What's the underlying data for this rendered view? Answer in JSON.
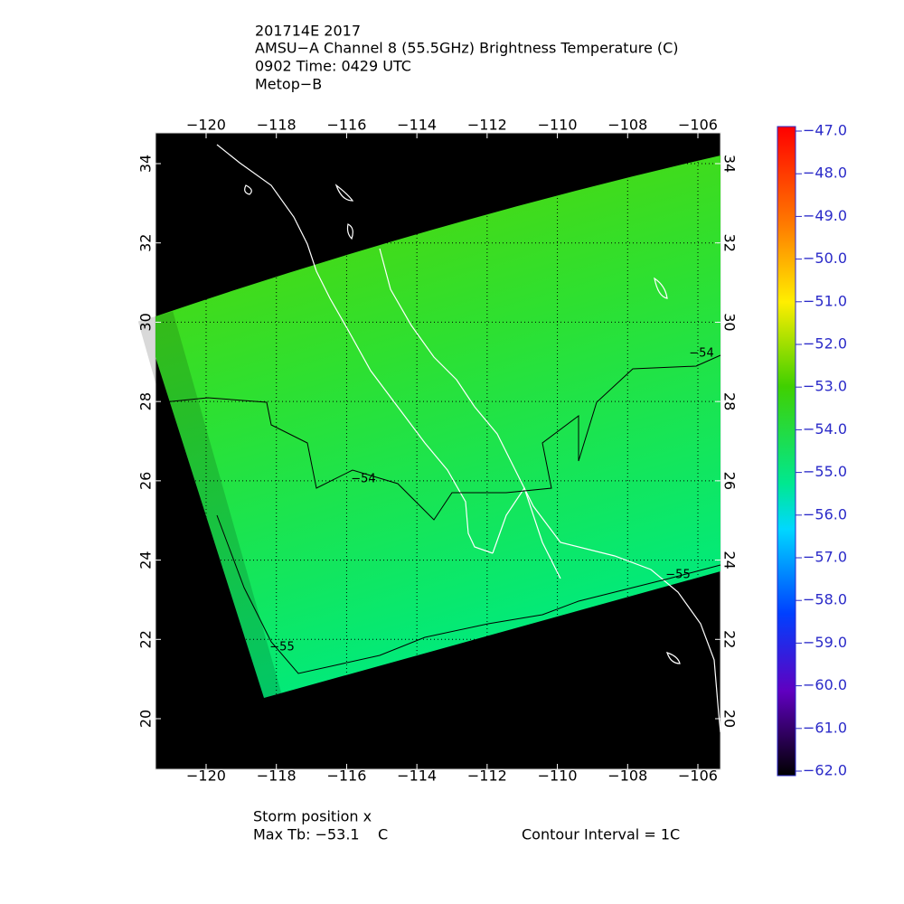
{
  "header": {
    "lines": [
      "201714E 2017",
      "AMSU−A Channel 8 (55.5GHz) Brightness Temperature (C)",
      "0902 Time: 0429 UTC",
      "Metop−B"
    ]
  },
  "map": {
    "lon_ticks": [
      {
        "value": -120,
        "label": "−120"
      },
      {
        "value": -118,
        "label": "−118"
      },
      {
        "value": -116,
        "label": "−116"
      },
      {
        "value": -114,
        "label": "−114"
      },
      {
        "value": -112,
        "label": "−112"
      },
      {
        "value": -110,
        "label": "−110"
      },
      {
        "value": -108,
        "label": "−108"
      },
      {
        "value": -106,
        "label": "−106"
      }
    ],
    "lat_ticks": [
      20,
      22,
      24,
      26,
      28,
      30,
      32,
      34
    ],
    "contour_labels": [
      {
        "value": -54,
        "label": "−54"
      },
      {
        "value": -54,
        "label": "−54"
      },
      {
        "value": -55,
        "label": "−55"
      },
      {
        "value": -55,
        "label": "−55"
      }
    ]
  },
  "colorbar": {
    "ticks": [
      {
        "value": -47,
        "label": "−47.0"
      },
      {
        "value": -48,
        "label": "−48.0"
      },
      {
        "value": -49,
        "label": "−49.0"
      },
      {
        "value": -50,
        "label": "−50.0"
      },
      {
        "value": -51,
        "label": "−51.0"
      },
      {
        "value": -52,
        "label": "−52.0"
      },
      {
        "value": -53,
        "label": "−53.0"
      },
      {
        "value": -54,
        "label": "−54.0"
      },
      {
        "value": -55,
        "label": "−55.0"
      },
      {
        "value": -56,
        "label": "−56.0"
      },
      {
        "value": -57,
        "label": "−57.0"
      },
      {
        "value": -58,
        "label": "−58.0"
      },
      {
        "value": -59,
        "label": "−59.0"
      },
      {
        "value": -60,
        "label": "−60.0"
      },
      {
        "value": -61,
        "label": "−61.0"
      },
      {
        "value": -62,
        "label": "−62.0"
      }
    ]
  },
  "footer": {
    "storm": "Storm position x",
    "max_tb": "Max Tb: −53.1    C",
    "contour_interval": "Contour Interval = 1C"
  }
}
